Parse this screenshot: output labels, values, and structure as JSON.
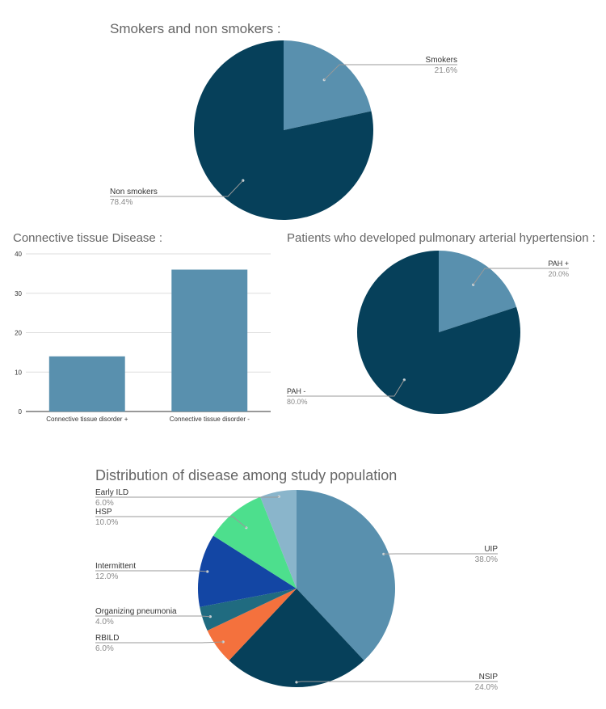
{
  "chart_data": [
    {
      "type": "pie",
      "title": "Smokers and non smokers :",
      "labels": [
        "Smokers",
        "Non smokers"
      ],
      "values": [
        21.6,
        78.4
      ],
      "percent_labels": [
        "21.6%",
        "78.4%"
      ],
      "colors": [
        "#5990ae",
        "#06405a"
      ]
    },
    {
      "type": "bar",
      "title": "Connective tissue Disease :",
      "categories": [
        "Connective tissue disorder +",
        "Connective tissue disorder -"
      ],
      "values": [
        14,
        36
      ],
      "ylim": [
        0,
        40
      ],
      "yticks": [
        0,
        10,
        20,
        30,
        40
      ],
      "grid": true,
      "color": "#5990ae"
    },
    {
      "type": "pie",
      "title": "Patients who developed pulmonary arterial hypertension :",
      "labels": [
        "PAH  +",
        "PAH -"
      ],
      "values": [
        20.0,
        80.0
      ],
      "percent_labels": [
        "20.0%",
        "80.0%"
      ],
      "colors": [
        "#5990ae",
        "#06405a"
      ]
    },
    {
      "type": "pie",
      "title": "Distribution of disease among study population",
      "labels": [
        "UIP",
        "NSIP",
        "RBILD",
        "Organizing pneumonia",
        "Intermittent",
        "HSP",
        "Early ILD"
      ],
      "values": [
        38.0,
        24.0,
        6.0,
        4.0,
        12.0,
        10.0,
        6.0
      ],
      "percent_labels": [
        "38.0%",
        "24.0%",
        "6.0%",
        "4.0%",
        "12.0%",
        "10.0%",
        "6.0%"
      ],
      "colors": [
        "#5990ae",
        "#06405a",
        "#f4713d",
        "#206b80",
        "#1346a4",
        "#4ddf8d",
        "#8ab5cb"
      ]
    }
  ]
}
